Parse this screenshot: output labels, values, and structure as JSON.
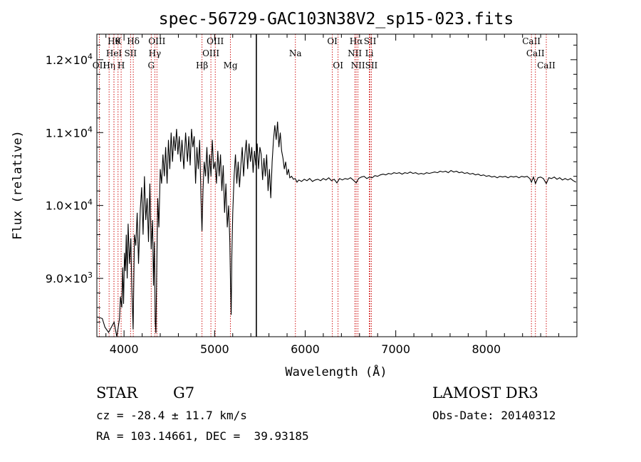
{
  "chart_data": {
    "type": "line",
    "title": "spec-56729-GAC103N38V2_sp15-023.fits",
    "xlabel": "Wavelength (Å)",
    "ylabel": "Flux (relative)",
    "xlim": [
      3700,
      9000
    ],
    "ylim": [
      8200,
      12350
    ],
    "x_ticks": [
      4000,
      5000,
      6000,
      7000,
      8000
    ],
    "x_tick_labels": [
      "4000",
      "5000",
      "6000",
      "7000",
      "8000"
    ],
    "y_ticks": [
      9000,
      10000,
      11000,
      12000
    ],
    "y_tick_labels": [
      {
        "mantissa": "9.0",
        "exponent": "3"
      },
      {
        "mantissa": "1.0",
        "exponent": "4"
      },
      {
        "mantissa": "1.1",
        "exponent": "4"
      },
      {
        "mantissa": "1.2",
        "exponent": "4"
      }
    ],
    "colors": {
      "line": "#000000",
      "marker": "#cc0000",
      "axis": "#000000"
    },
    "spike": {
      "x": 5461,
      "y_from": 8200,
      "y_to": 12350
    },
    "series": [
      {
        "name": "spectrum",
        "points": [
          [
            3705,
            8470
          ],
          [
            3760,
            8450
          ],
          [
            3790,
            8330
          ],
          [
            3830,
            8260
          ],
          [
            3860,
            8330
          ],
          [
            3890,
            8400
          ],
          [
            3920,
            8200
          ],
          [
            3950,
            8450
          ],
          [
            3960,
            8750
          ],
          [
            3975,
            8600
          ],
          [
            3985,
            9150
          ],
          [
            3995,
            8650
          ],
          [
            4005,
            9350
          ],
          [
            4015,
            9100
          ],
          [
            4025,
            9600
          ],
          [
            4035,
            9000
          ],
          [
            4045,
            9750
          ],
          [
            4060,
            9200
          ],
          [
            4075,
            9550
          ],
          [
            4085,
            8900
          ],
          [
            4100,
            8300
          ],
          [
            4115,
            9600
          ],
          [
            4130,
            9450
          ],
          [
            4145,
            9900
          ],
          [
            4160,
            9200
          ],
          [
            4180,
            9950
          ],
          [
            4195,
            10250
          ],
          [
            4210,
            9600
          ],
          [
            4225,
            10400
          ],
          [
            4240,
            9800
          ],
          [
            4255,
            10100
          ],
          [
            4270,
            9500
          ],
          [
            4285,
            10300
          ],
          [
            4300,
            9400
          ],
          [
            4315,
            9800
          ],
          [
            4325,
            8900
          ],
          [
            4335,
            9500
          ],
          [
            4345,
            8400
          ],
          [
            4352,
            8250
          ],
          [
            4360,
            9000
          ],
          [
            4372,
            10100
          ],
          [
            4385,
            9700
          ],
          [
            4400,
            10500
          ],
          [
            4415,
            10300
          ],
          [
            4430,
            10700
          ],
          [
            4445,
            10400
          ],
          [
            4460,
            10800
          ],
          [
            4475,
            10300
          ],
          [
            4490,
            10900
          ],
          [
            4505,
            10500
          ],
          [
            4520,
            11000
          ],
          [
            4535,
            10600
          ],
          [
            4550,
            10950
          ],
          [
            4565,
            10750
          ],
          [
            4580,
            11050
          ],
          [
            4595,
            10700
          ],
          [
            4610,
            10950
          ],
          [
            4625,
            10600
          ],
          [
            4640,
            10900
          ],
          [
            4660,
            10500
          ],
          [
            4680,
            11000
          ],
          [
            4700,
            10600
          ],
          [
            4715,
            10950
          ],
          [
            4730,
            10550
          ],
          [
            4745,
            11050
          ],
          [
            4760,
            10800
          ],
          [
            4775,
            10950
          ],
          [
            4790,
            10300
          ],
          [
            4805,
            10800
          ],
          [
            4820,
            10500
          ],
          [
            4835,
            10900
          ],
          [
            4850,
            10100
          ],
          [
            4861,
            9650
          ],
          [
            4872,
            10200
          ],
          [
            4885,
            10600
          ],
          [
            4900,
            10400
          ],
          [
            4915,
            10800
          ],
          [
            4930,
            10300
          ],
          [
            4945,
            10700
          ],
          [
            4960,
            10400
          ],
          [
            4975,
            10900
          ],
          [
            4990,
            10500
          ],
          [
            5005,
            10600
          ],
          [
            5020,
            10300
          ],
          [
            5035,
            10750
          ],
          [
            5050,
            10400
          ],
          [
            5065,
            10700
          ],
          [
            5080,
            10200
          ],
          [
            5095,
            10550
          ],
          [
            5110,
            9900
          ],
          [
            5125,
            10300
          ],
          [
            5140,
            9700
          ],
          [
            5155,
            10000
          ],
          [
            5168,
            9500
          ],
          [
            5175,
            8950
          ],
          [
            5183,
            8500
          ],
          [
            5190,
            9300
          ],
          [
            5200,
            9900
          ],
          [
            5215,
            10400
          ],
          [
            5230,
            10700
          ],
          [
            5245,
            10300
          ],
          [
            5260,
            10600
          ],
          [
            5275,
            10250
          ],
          [
            5290,
            10550
          ],
          [
            5305,
            10800
          ],
          [
            5320,
            10400
          ],
          [
            5335,
            10700
          ],
          [
            5350,
            10900
          ],
          [
            5365,
            10500
          ],
          [
            5380,
            10850
          ],
          [
            5395,
            10600
          ],
          [
            5410,
            10800
          ],
          [
            5425,
            10450
          ],
          [
            5440,
            10750
          ],
          [
            5455,
            10550
          ],
          [
            5470,
            10850
          ],
          [
            5485,
            10500
          ],
          [
            5500,
            10800
          ],
          [
            5515,
            10700
          ],
          [
            5530,
            10350
          ],
          [
            5545,
            10650
          ],
          [
            5560,
            10400
          ],
          [
            5575,
            10700
          ],
          [
            5590,
            10200
          ],
          [
            5605,
            10500
          ],
          [
            5620,
            10100
          ],
          [
            5635,
            10600
          ],
          [
            5650,
            10900
          ],
          [
            5665,
            11100
          ],
          [
            5680,
            10900
          ],
          [
            5695,
            11150
          ],
          [
            5710,
            10800
          ],
          [
            5725,
            11000
          ],
          [
            5740,
            10750
          ],
          [
            5755,
            10650
          ],
          [
            5770,
            10500
          ],
          [
            5785,
            10600
          ],
          [
            5800,
            10420
          ],
          [
            5815,
            10500
          ],
          [
            5830,
            10380
          ],
          [
            5850,
            10400
          ],
          [
            5870,
            10360
          ],
          [
            5890,
            10370
          ],
          [
            5910,
            10320
          ],
          [
            5930,
            10350
          ],
          [
            5960,
            10330
          ],
          [
            5990,
            10360
          ],
          [
            6020,
            10340
          ],
          [
            6050,
            10370
          ],
          [
            6080,
            10330
          ],
          [
            6110,
            10350
          ],
          [
            6140,
            10360
          ],
          [
            6170,
            10340
          ],
          [
            6200,
            10370
          ],
          [
            6230,
            10350
          ],
          [
            6260,
            10380
          ],
          [
            6290,
            10340
          ],
          [
            6320,
            10360
          ],
          [
            6350,
            10310
          ],
          [
            6380,
            10370
          ],
          [
            6410,
            10350
          ],
          [
            6440,
            10370
          ],
          [
            6470,
            10360
          ],
          [
            6500,
            10380
          ],
          [
            6530,
            10350
          ],
          [
            6563,
            10310
          ],
          [
            6590,
            10370
          ],
          [
            6620,
            10390
          ],
          [
            6650,
            10400
          ],
          [
            6680,
            10370
          ],
          [
            6710,
            10390
          ],
          [
            6740,
            10380
          ],
          [
            6770,
            10410
          ],
          [
            6800,
            10400
          ],
          [
            6830,
            10420
          ],
          [
            6860,
            10430
          ],
          [
            6890,
            10420
          ],
          [
            6920,
            10440
          ],
          [
            6950,
            10430
          ],
          [
            6980,
            10450
          ],
          [
            7010,
            10440
          ],
          [
            7040,
            10450
          ],
          [
            7070,
            10430
          ],
          [
            7100,
            10450
          ],
          [
            7130,
            10440
          ],
          [
            7160,
            10460
          ],
          [
            7190,
            10440
          ],
          [
            7220,
            10450
          ],
          [
            7250,
            10430
          ],
          [
            7280,
            10440
          ],
          [
            7310,
            10430
          ],
          [
            7340,
            10450
          ],
          [
            7370,
            10440
          ],
          [
            7400,
            10450
          ],
          [
            7430,
            10460
          ],
          [
            7460,
            10450
          ],
          [
            7490,
            10470
          ],
          [
            7520,
            10460
          ],
          [
            7550,
            10470
          ],
          [
            7580,
            10450
          ],
          [
            7610,
            10480
          ],
          [
            7640,
            10460
          ],
          [
            7670,
            10470
          ],
          [
            7700,
            10450
          ],
          [
            7730,
            10460
          ],
          [
            7760,
            10440
          ],
          [
            7790,
            10450
          ],
          [
            7820,
            10430
          ],
          [
            7850,
            10440
          ],
          [
            7880,
            10420
          ],
          [
            7910,
            10430
          ],
          [
            7940,
            10410
          ],
          [
            7970,
            10420
          ],
          [
            8000,
            10400
          ],
          [
            8030,
            10410
          ],
          [
            8060,
            10390
          ],
          [
            8090,
            10400
          ],
          [
            8120,
            10380
          ],
          [
            8150,
            10400
          ],
          [
            8180,
            10390
          ],
          [
            8210,
            10400
          ],
          [
            8240,
            10380
          ],
          [
            8270,
            10400
          ],
          [
            8300,
            10390
          ],
          [
            8330,
            10400
          ],
          [
            8360,
            10380
          ],
          [
            8390,
            10400
          ],
          [
            8420,
            10390
          ],
          [
            8450,
            10400
          ],
          [
            8480,
            10370
          ],
          [
            8498,
            10320
          ],
          [
            8520,
            10390
          ],
          [
            8542,
            10300
          ],
          [
            8570,
            10380
          ],
          [
            8600,
            10390
          ],
          [
            8630,
            10370
          ],
          [
            8662,
            10300
          ],
          [
            8690,
            10380
          ],
          [
            8720,
            10370
          ],
          [
            8750,
            10390
          ],
          [
            8780,
            10360
          ],
          [
            8810,
            10380
          ],
          [
            8840,
            10350
          ],
          [
            8870,
            10370
          ],
          [
            8900,
            10350
          ],
          [
            8930,
            10370
          ],
          [
            8960,
            10340
          ],
          [
            8990,
            10320
          ]
        ]
      }
    ],
    "line_markers": [
      {
        "x": 3727,
        "label": "OII",
        "row": 2
      },
      {
        "x": 3835,
        "label": "Hη",
        "row": 2
      },
      {
        "x": 3889,
        "label": "Hθ",
        "row": 0
      },
      {
        "x": 3889,
        "label": "HeI",
        "row": 1
      },
      {
        "x": 3934,
        "label": "K",
        "row": 0
      },
      {
        "x": 3968,
        "label": "H",
        "row": 2
      },
      {
        "x": 4072,
        "label": "SII",
        "row": 1
      },
      {
        "x": 4102,
        "label": "Hδ",
        "row": 0
      },
      {
        "x": 4300,
        "label": "G",
        "row": 2
      },
      {
        "x": 4340,
        "label": "Hγ",
        "row": 1
      },
      {
        "x": 4363,
        "label": "OIII",
        "row": 0
      },
      {
        "x": 4861,
        "label": "Hβ",
        "row": 2
      },
      {
        "x": 4959,
        "label": "OIII",
        "row": 1
      },
      {
        "x": 5007,
        "label": "OIII",
        "row": 0
      },
      {
        "x": 5175,
        "label": "Mg",
        "row": 2
      },
      {
        "x": 5892,
        "label": "Na",
        "row": 1
      },
      {
        "x": 6300,
        "label": "OI",
        "row": 0
      },
      {
        "x": 6363,
        "label": "OI",
        "row": 2
      },
      {
        "x": 6548,
        "label": "NII",
        "row": 1
      },
      {
        "x": 6563,
        "label": "Hα",
        "row": 0
      },
      {
        "x": 6583,
        "label": "NII",
        "row": 2
      },
      {
        "x": 6708,
        "label": "Li",
        "row": 1
      },
      {
        "x": 6716,
        "label": "SII",
        "row": 0
      },
      {
        "x": 6731,
        "label": "SII",
        "row": 2
      },
      {
        "x": 8498,
        "label": "CaII",
        "row": 0
      },
      {
        "x": 8542,
        "label": "CaII",
        "row": 1
      },
      {
        "x": 8662,
        "label": "CaII",
        "row": 2
      }
    ]
  },
  "info": {
    "object_class": "STAR",
    "subclass": "G7",
    "survey": "LAMOST DR3",
    "redshift": "cz = -28.4 ± 11.7 km/s",
    "obs_date": "Obs-Date: 20140312",
    "coords": "RA = 103.14661, DEC =  39.93185"
  }
}
